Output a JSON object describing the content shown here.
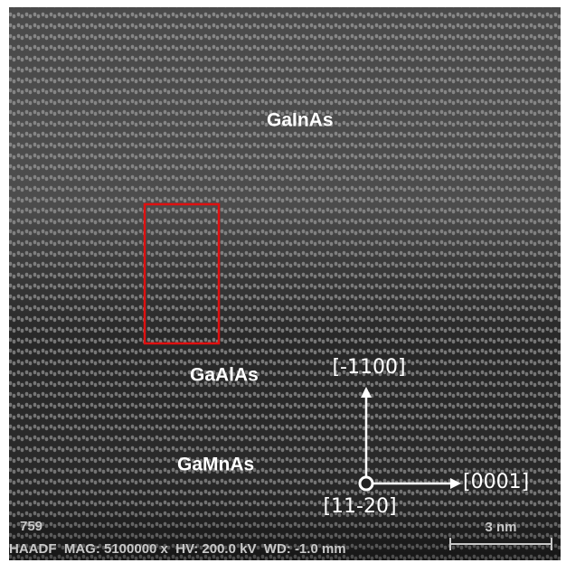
{
  "image": {
    "layers": {
      "top": "GaInAs",
      "middle": "GaAlAs",
      "bottom": "GaMnAs"
    },
    "directions": {
      "up": "[-1100]",
      "right": "[0001]",
      "origin": "[11-20]"
    },
    "frame_number": "759",
    "info_bar": "HAADF  MAG: 5100000 x  HV: 200.0 kV  WD: -1.0 mm",
    "scale_bar": "3 nm"
  }
}
